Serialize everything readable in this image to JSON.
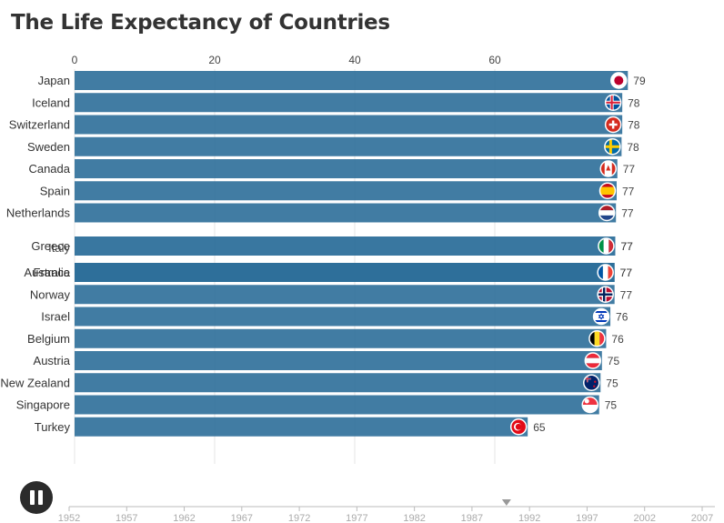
{
  "title": "The Life Expectancy of Countries",
  "chart_data": {
    "type": "bar",
    "orientation": "horizontal",
    "title": "The Life Expectancy of Countries",
    "xlabel": "",
    "ylabel": "",
    "xlim": [
      0,
      80
    ],
    "x_ticks": [
      0,
      20,
      40,
      60
    ],
    "grid": true,
    "bar_color": "#2c6e99",
    "categories": [
      "Japan",
      "Iceland",
      "Switzerland",
      "Sweden",
      "Canada",
      "Spain",
      "Netherlands",
      "Greece",
      "Italy",
      "Australia",
      "France",
      "Norway",
      "Israel",
      "Belgium",
      "Austria",
      "New Zealand",
      "Singapore",
      "Turkey"
    ],
    "values": [
      79,
      78,
      78,
      78,
      77,
      77,
      77,
      77,
      77,
      77,
      77,
      77,
      76,
      76,
      75,
      75,
      75,
      65
    ],
    "bar_values_exact": [
      79.0,
      78.2,
      78.2,
      78.1,
      77.5,
      77.4,
      77.3,
      77.2,
      77.2,
      77.1,
      77.1,
      77.1,
      76.5,
      75.9,
      75.3,
      75.1,
      74.9,
      64.7
    ],
    "flags": [
      "japan-flag-icon",
      "iceland-flag-icon",
      "switzerland-flag-icon",
      "sweden-flag-icon",
      "canada-flag-icon",
      "spain-flag-icon",
      "netherlands-flag-icon",
      "greece-flag-icon",
      "italy-flag-icon",
      "australia-flag-icon",
      "france-flag-icon",
      "norway-flag-icon",
      "israel-flag-icon",
      "belgium-flag-icon",
      "austria-flag-icon",
      "new-zealand-flag-icon",
      "singapore-flag-icon",
      "turkey-flag-icon"
    ],
    "rank_slots": [
      0,
      1,
      2,
      3,
      4,
      5,
      6,
      7,
      7,
      8,
      9,
      10,
      11,
      12,
      13,
      14,
      15,
      16
    ]
  },
  "timeline": {
    "years": [
      "1952",
      "1957",
      "1962",
      "1967",
      "1972",
      "1977",
      "1982",
      "1987",
      "1992",
      "1997",
      "2002",
      "2007"
    ],
    "current_year": 1990
  },
  "controls": {
    "pause_icon": "pause-icon"
  }
}
